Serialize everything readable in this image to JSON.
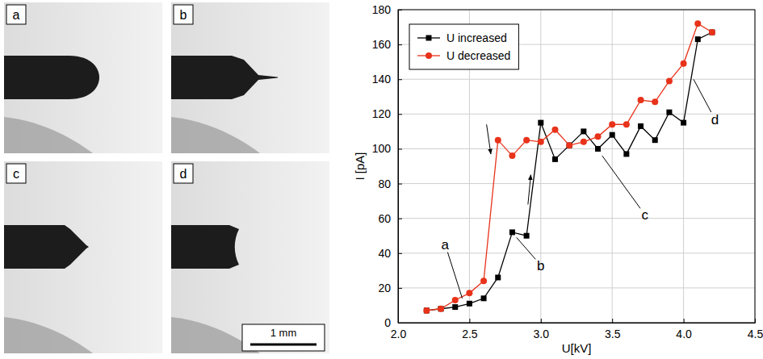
{
  "chart_data": {
    "type": "line",
    "xlabel": "U[kV]",
    "ylabel": "I [pA]",
    "x": [
      2.2,
      2.3,
      2.4,
      2.5,
      2.6,
      2.7,
      2.8,
      2.9,
      3.0,
      3.1,
      3.2,
      3.3,
      3.4,
      3.5,
      3.6,
      3.7,
      3.8,
      3.9,
      4.0,
      4.1,
      4.2
    ],
    "series": [
      {
        "name": "U increased",
        "color": "#000000",
        "marker": "square",
        "line_style": "solid",
        "values": [
          7,
          8,
          9,
          11,
          14,
          26,
          52,
          50,
          115,
          94,
          102,
          110,
          100,
          108,
          97,
          113,
          105,
          121,
          115,
          163,
          167
        ]
      },
      {
        "name": "U decreased",
        "color": "#e8321a",
        "marker": "circle",
        "line_style": "solid",
        "values": [
          7,
          8,
          13,
          17,
          24,
          105,
          96,
          105,
          104,
          111,
          102,
          104,
          107,
          114,
          114,
          128,
          127,
          139,
          149,
          172,
          167
        ]
      }
    ],
    "xlim": [
      2.0,
      4.5
    ],
    "xticks": [
      {
        "value": 2.0,
        "label": "2.0"
      },
      {
        "value": 2.5,
        "label": "2.5"
      },
      {
        "value": 3.0,
        "label": "3.0"
      },
      {
        "value": 3.5,
        "label": "3.5"
      },
      {
        "value": 4.0,
        "label": "4.0"
      },
      {
        "value": 4.5,
        "label": "4.5"
      }
    ],
    "ylim": [
      0,
      180
    ],
    "yticks": [
      0,
      20,
      40,
      60,
      80,
      100,
      120,
      140,
      160,
      180
    ],
    "grid": true,
    "legend": "upper left",
    "annotations": [
      {
        "text": "a",
        "xytext": [
          2.33,
          45
        ],
        "xy": [
          2.45,
          14
        ]
      },
      {
        "text": "b",
        "xytext": [
          3.0,
          33
        ],
        "xy": [
          2.83,
          49
        ]
      },
      {
        "text": "c",
        "xytext": [
          3.73,
          62
        ],
        "xy": [
          3.43,
          96
        ]
      },
      {
        "text": "d",
        "xytext": [
          4.22,
          117
        ],
        "xy": [
          4.07,
          140
        ]
      }
    ],
    "arrows": [
      {
        "xytext": [
          2.62,
          114
        ],
        "xy": [
          2.65,
          97
        ]
      },
      {
        "xytext": [
          2.91,
          68
        ],
        "xy": [
          2.93,
          85
        ]
      }
    ]
  },
  "images": {
    "panels": [
      {
        "label": "a"
      },
      {
        "label": "b"
      },
      {
        "label": "c"
      },
      {
        "label": "d"
      }
    ],
    "scale_bar": "1 mm"
  }
}
